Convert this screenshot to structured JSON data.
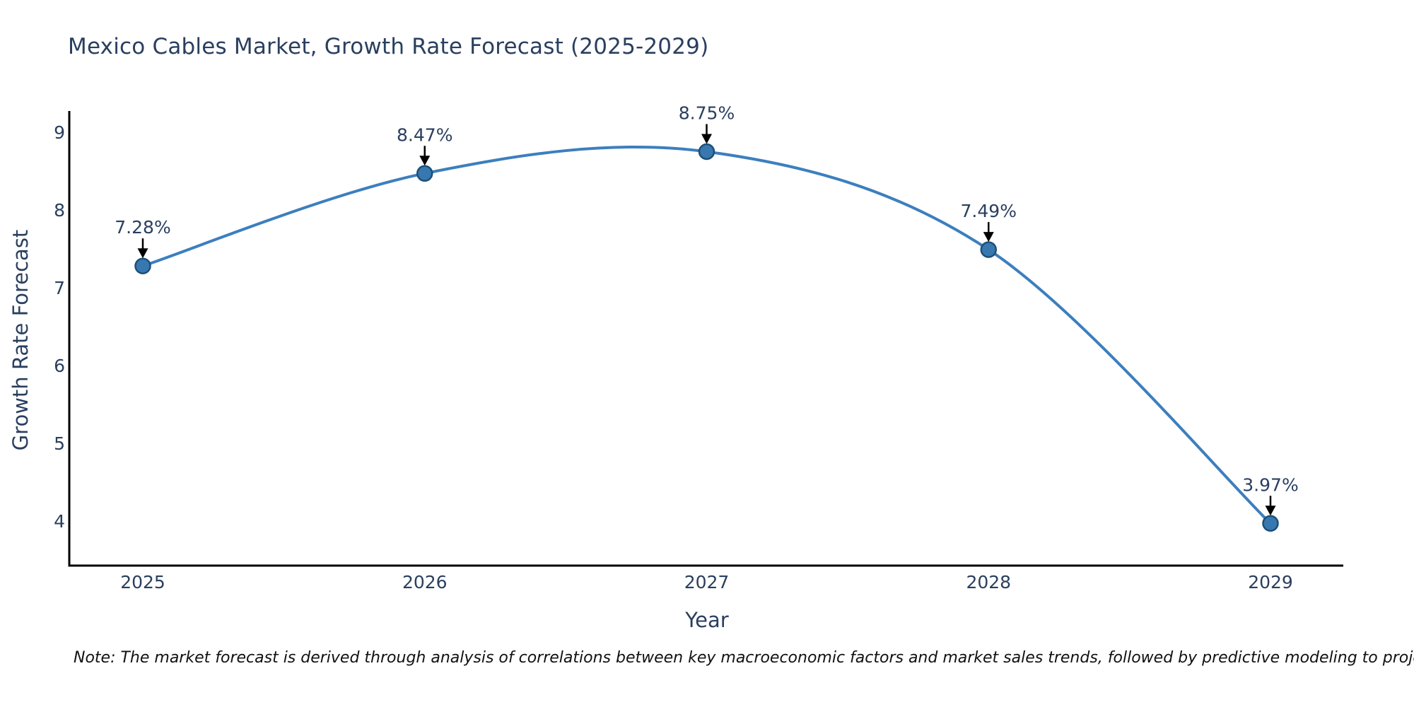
{
  "title": "Mexico Cables Market, Growth Rate Forecast (2025-2029)",
  "note": "Note: The market forecast is derived through analysis of correlations between key macroeconomic factors and market sales trends, followed by predictive modeling to project future sales.",
  "chart_data": {
    "type": "line",
    "title": "Mexico Cables Market, Growth Rate Forecast (2025-2029)",
    "xlabel": "Year",
    "ylabel": "Growth Rate Forecast",
    "x": [
      2025,
      2026,
      2027,
      2028,
      2029
    ],
    "values": [
      7.28,
      8.47,
      8.75,
      7.49,
      3.97
    ],
    "point_labels": [
      "7.28%",
      "8.47%",
      "8.75%",
      "7.49%",
      "3.97%"
    ],
    "xticks": [
      "2025",
      "2026",
      "2027",
      "2028",
      "2029"
    ],
    "yticks": [
      4,
      5,
      6,
      7,
      8,
      9
    ],
    "ylim": [
      3.4,
      9.4
    ],
    "grid": false,
    "legend": false,
    "curve": "smooth-spline",
    "annotation_style": "label-above-with-down-arrow",
    "colors": {
      "line": "#3c7fbe",
      "marker_fill": "#3778b0",
      "marker_edge": "#1d4f77",
      "axis": "#000000",
      "arrow": "#000000",
      "text": "#2a3f5f",
      "note_text": "#111111",
      "background": "#ffffff"
    }
  }
}
